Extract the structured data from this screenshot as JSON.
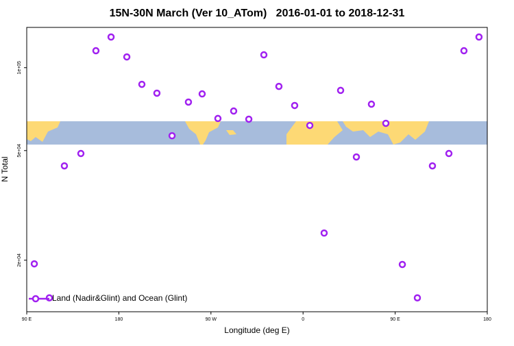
{
  "chart_data": {
    "type": "scatter",
    "title": "15N-30N March (Ver 10_ATom)   2016-01-01 to 2018-12-31",
    "x_label": "Longitude (deg E)",
    "y_label": "N Total",
    "xlim": [
      90,
      540
    ],
    "ylim": [
      13000,
      140000
    ],
    "yscale": "log",
    "xticks": [
      {
        "value": 90,
        "label": "90 E"
      },
      {
        "value": 180,
        "label": "180"
      },
      {
        "value": 270,
        "label": "90 W"
      },
      {
        "value": 360,
        "label": "0"
      },
      {
        "value": 450,
        "label": "90 E"
      },
      {
        "value": 540,
        "label": "180"
      }
    ],
    "yticks": [
      {
        "value": 20000,
        "label": "2e+04"
      },
      {
        "value": 50000,
        "label": "5e+04"
      },
      {
        "value": 100000,
        "label": "1e+05"
      }
    ],
    "legend": "lower left",
    "series": [
      {
        "name": "Land (Nadir&Glint) and Ocean (Glint)",
        "color": "#a020f0",
        "x": [
          97.4,
          112.1,
          126.8,
          142.9,
          157.6,
          172.4,
          187.8,
          202.5,
          217.2,
          232.0,
          248.0,
          261.4,
          276.8,
          292.2,
          307.0,
          321.7,
          336.4,
          351.8,
          366.6,
          380.6,
          396.7,
          412.1,
          426.8,
          440.9,
          457.0,
          471.7,
          486.4,
          502.5,
          517.2,
          531.9
        ],
        "values": [
          19400,
          14600,
          44000,
          48800,
          115200,
          129200,
          109400,
          87000,
          80800,
          56600,
          75000,
          80300,
          65400,
          69600,
          65000,
          111300,
          85500,
          72900,
          61700,
          25100,
          82700,
          47400,
          73700,
          62800,
          19300,
          14600,
          44000,
          48800,
          115200,
          129200
        ]
      }
    ]
  }
}
